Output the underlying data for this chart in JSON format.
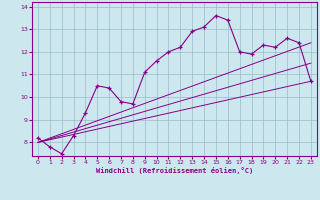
{
  "xlabel": "Windchill (Refroidissement éolien,°C)",
  "bg_color": "#cce8ee",
  "line_color": "#880088",
  "grid_color": "#99bbcc",
  "xlim": [
    -0.5,
    23.5
  ],
  "ylim": [
    7.4,
    14.2
  ],
  "xticks": [
    0,
    1,
    2,
    3,
    4,
    5,
    6,
    7,
    8,
    9,
    10,
    11,
    12,
    13,
    14,
    15,
    16,
    17,
    18,
    19,
    20,
    21,
    22,
    23
  ],
  "yticks": [
    8,
    9,
    10,
    11,
    12,
    13,
    14
  ],
  "series1_x": [
    0,
    1,
    2,
    3,
    4,
    5,
    6,
    7,
    8,
    9,
    10,
    11,
    12,
    13,
    14,
    15,
    16,
    17,
    18,
    19,
    20,
    21,
    22,
    23
  ],
  "series1_y": [
    8.2,
    7.8,
    7.5,
    8.3,
    9.3,
    10.5,
    10.4,
    9.8,
    9.7,
    11.1,
    11.6,
    12.0,
    12.2,
    12.9,
    13.1,
    13.6,
    13.4,
    12.0,
    11.9,
    12.3,
    12.2,
    12.6,
    12.4,
    10.7
  ],
  "series2_x": [
    0,
    23
  ],
  "series2_y": [
    8.0,
    10.7
  ],
  "series3_x": [
    0,
    23
  ],
  "series3_y": [
    8.0,
    12.4
  ],
  "series4_x": [
    0,
    23
  ],
  "series4_y": [
    8.0,
    11.5
  ]
}
